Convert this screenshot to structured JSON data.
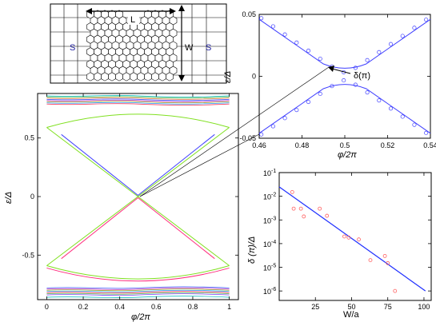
{
  "schematic": {
    "label_L": "L",
    "label_W": "W",
    "label_S_left": "S",
    "label_S_right": "S"
  },
  "annotation": "δ(π)",
  "chart_data": [
    {
      "id": "main",
      "type": "line",
      "xlabel": "φ/2π",
      "ylabel": "ε/Δ",
      "xlim": [
        -0.05,
        1.05
      ],
      "ylim": [
        -0.88,
        0.88
      ],
      "xticks": [
        "0",
        "0.2",
        "0.4",
        "0.6",
        "0.8",
        "1"
      ],
      "xtick_values": [
        0,
        0.2,
        0.4,
        0.6,
        0.8,
        1.0
      ],
      "yticks": [
        "0.5",
        "0",
        "-0.5"
      ],
      "ytick_values": [
        0.5,
        0,
        -0.5
      ],
      "series": [
        {
          "color": "#80e020",
          "kind": "cross_upper",
          "points": [
            [
              0,
              0.59
            ],
            [
              0.5,
              0.0
            ],
            [
              1,
              0.59
            ]
          ]
        },
        {
          "color": "#80e020",
          "kind": "cross_lower",
          "points": [
            [
              0,
              -0.59
            ],
            [
              0.5,
              0.0
            ],
            [
              1,
              -0.59
            ]
          ]
        },
        {
          "color": "#4040ff",
          "kind": "cross_upper",
          "points": [
            [
              0.08,
              0.53
            ],
            [
              0.5,
              0.01
            ],
            [
              0.92,
              0.53
            ]
          ]
        },
        {
          "color": "#ff3080",
          "kind": "cross_lower",
          "points": [
            [
              0.08,
              -0.53
            ],
            [
              0.5,
              -0.01
            ],
            [
              0.92,
              -0.53
            ]
          ]
        },
        {
          "color": "#80e020",
          "kind": "arc_upper",
          "points": [
            [
              0,
              0.59
            ],
            [
              0.25,
              0.74
            ],
            [
              0.5,
              0.77
            ],
            [
              0.75,
              0.74
            ],
            [
              1,
              0.59
            ]
          ]
        },
        {
          "color": "#80e020",
          "kind": "arc_lower",
          "points": [
            [
              0,
              -0.59
            ],
            [
              0.25,
              -0.74
            ],
            [
              0.5,
              -0.77
            ],
            [
              0.75,
              -0.74
            ],
            [
              1,
              -0.59
            ]
          ]
        },
        {
          "color": "#ff3080",
          "kind": "arc_lower",
          "points": [
            [
              0,
              -0.61
            ],
            [
              0.25,
              -0.76
            ],
            [
              0.5,
              -0.785
            ],
            [
              0.75,
              -0.76
            ],
            [
              1,
              -0.61
            ]
          ]
        }
      ],
      "band_colors": [
        "#20c0c0",
        "#40b040",
        "#ff8040",
        "#4060ff",
        "#c040c0",
        "#a0a020",
        "#20a0ff",
        "#ff4060",
        "#60c060",
        "#8040ff"
      ],
      "bands_top": [
        0.86,
        0.85,
        0.84,
        0.83,
        0.82,
        0.81,
        0.8,
        0.79
      ],
      "bands_bottom": [
        -0.78,
        -0.79,
        -0.8,
        -0.81,
        -0.82,
        -0.83,
        -0.84,
        -0.86
      ]
    },
    {
      "id": "zoom",
      "type": "line",
      "xlabel": "φ/2π",
      "ylabel": "ε/Δ",
      "xlim": [
        0.46,
        0.54
      ],
      "ylim": [
        -0.05,
        0.05
      ],
      "xticks": [
        "0.46",
        "0.48",
        "0.5",
        "0.52",
        "0.54"
      ],
      "xtick_values": [
        0.46,
        0.48,
        0.5,
        0.52,
        0.54
      ],
      "yticks": [
        "0.05",
        "0",
        "-0.05"
      ],
      "ytick_values": [
        0.05,
        0,
        -0.05
      ],
      "series": [
        {
          "color": "#4040ff",
          "kind": "upper",
          "points": [
            [
              0.46,
              0.046
            ],
            [
              0.47,
              0.034
            ],
            [
              0.48,
              0.022
            ],
            [
              0.49,
              0.01
            ],
            [
              0.5,
              0.003
            ],
            [
              0.51,
              0.01
            ],
            [
              0.52,
              0.022
            ],
            [
              0.53,
              0.034
            ],
            [
              0.54,
              0.046
            ]
          ]
        },
        {
          "color": "#4040ff",
          "kind": "lower",
          "points": [
            [
              0.46,
              -0.046
            ],
            [
              0.47,
              -0.034
            ],
            [
              0.48,
              -0.022
            ],
            [
              0.49,
              -0.01
            ],
            [
              0.5,
              -0.003
            ],
            [
              0.51,
              -0.01
            ],
            [
              0.52,
              -0.022
            ],
            [
              0.53,
              -0.034
            ],
            [
              0.54,
              -0.046
            ]
          ]
        }
      ]
    },
    {
      "id": "decay",
      "type": "scatter",
      "xlabel": "W/a",
      "ylabel": "δ (π)/Δ",
      "yscale": "log",
      "xlim": [
        0,
        105
      ],
      "ylim_exp": [
        -6.4,
        -1
      ],
      "xticks": [
        "25",
        "50",
        "75",
        "100"
      ],
      "xtick_values": [
        25,
        50,
        75,
        100
      ],
      "yticks_base": "10",
      "yticks_exp": [
        "-1",
        "-2",
        "-3",
        "-4",
        "-5",
        "-6"
      ],
      "ytick_exp_values": [
        -1,
        -2,
        -3,
        -4,
        -5,
        -6
      ],
      "points": [
        [
          9,
          0.015
        ],
        [
          10,
          0.003
        ],
        [
          15,
          0.003
        ],
        [
          17,
          0.0014
        ],
        [
          28,
          0.003
        ],
        [
          33,
          0.0015
        ],
        [
          45,
          0.0002
        ],
        [
          48,
          0.00018
        ],
        [
          55,
          0.00015
        ],
        [
          63,
          2e-05
        ],
        [
          73,
          3e-05
        ],
        [
          75,
          1.5e-05
        ],
        [
          80,
          1e-06
        ]
      ],
      "fit": [
        [
          0,
          0.025
        ],
        [
          101,
          1e-06
        ]
      ],
      "point_color": "#ff6060",
      "fit_color": "#2030ff"
    }
  ]
}
